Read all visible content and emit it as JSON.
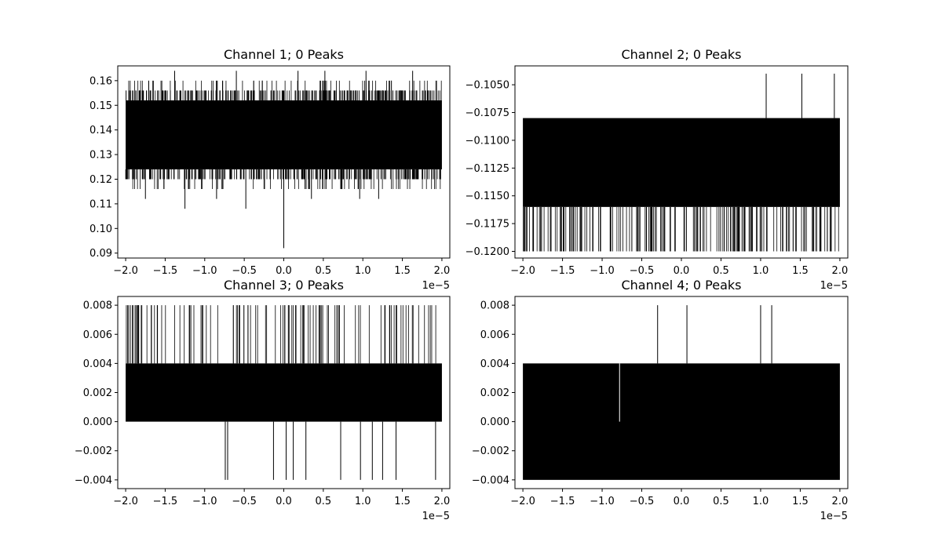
{
  "figure": {
    "background": "#ffffff",
    "line_color": "#000000"
  },
  "chart_data": [
    {
      "type": "line",
      "title": "Channel 1; 0 Peaks",
      "xlabel": "",
      "ylabel": "",
      "xlim": [
        -2.1,
        2.1
      ],
      "ylim": [
        0.088,
        0.166
      ],
      "x_offset_label": "1e−5",
      "xticks": [
        -2.0,
        -1.5,
        -1.0,
        -0.5,
        0.0,
        0.5,
        1.0,
        1.5,
        2.0
      ],
      "xtick_labels": [
        "−2.0",
        "−1.5",
        "−1.0",
        "−0.5",
        "0.0",
        "0.5",
        "1.0",
        "1.5",
        "2.0"
      ],
      "yticks": [
        0.09,
        0.1,
        0.11,
        0.12,
        0.13,
        0.14,
        0.15,
        0.16
      ],
      "ytick_labels": [
        "0.09",
        "0.10",
        "0.11",
        "0.12",
        "0.13",
        "0.14",
        "0.15",
        "0.16"
      ],
      "x_range": [
        -2.0,
        2.0
      ],
      "band": [
        0.124,
        0.152
      ],
      "occasional_levels": [
        0.12,
        0.156
      ],
      "rare_levels": [
        0.116,
        0.16
      ],
      "spikes": [
        {
          "x": 0.0,
          "y": 0.092
        },
        {
          "x": -1.25,
          "y": 0.108
        },
        {
          "x": -0.48,
          "y": 0.108
        },
        {
          "x": 0.52,
          "y": 0.164
        },
        {
          "x": 0.18,
          "y": 0.164
        },
        {
          "x": -1.38,
          "y": 0.164
        },
        {
          "x": -0.6,
          "y": 0.164
        },
        {
          "x": 1.04,
          "y": 0.164
        },
        {
          "x": 1.63,
          "y": 0.164
        },
        {
          "x": 0.96,
          "y": 0.112
        },
        {
          "x": -1.75,
          "y": 0.112
        },
        {
          "x": 1.2,
          "y": 0.112
        },
        {
          "x": -0.85,
          "y": 0.112
        },
        {
          "x": 0.35,
          "y": 0.112
        }
      ],
      "grid": false,
      "legend": "none"
    },
    {
      "type": "line",
      "title": "Channel 2; 0 Peaks",
      "xlabel": "",
      "ylabel": "",
      "xlim": [
        -2.1,
        2.1
      ],
      "ylim": [
        -0.1206,
        -0.1033
      ],
      "x_offset_label": "1e−5",
      "xticks": [
        -2.0,
        -1.5,
        -1.0,
        -0.5,
        0.0,
        0.5,
        1.0,
        1.5,
        2.0
      ],
      "xtick_labels": [
        "−2.0",
        "−1.5",
        "−1.0",
        "−0.5",
        "0.0",
        "0.5",
        "1.0",
        "1.5",
        "2.0"
      ],
      "yticks": [
        -0.105,
        -0.1075,
        -0.11,
        -0.1125,
        -0.115,
        -0.1175,
        -0.12
      ],
      "ytick_labels": [
        "−0.1050",
        "−0.1075",
        "−0.1100",
        "−0.1125",
        "−0.1150",
        "−0.1175",
        "−0.1200"
      ],
      "x_range": [
        -2.0,
        2.0
      ],
      "band": [
        -0.116,
        -0.108
      ],
      "occasional_levels": [
        -0.12
      ],
      "rare_levels": [],
      "spikes": [
        {
          "x": 1.07,
          "y": -0.104
        },
        {
          "x": 1.52,
          "y": -0.104
        },
        {
          "x": 1.93,
          "y": -0.104
        }
      ],
      "grid": false,
      "legend": "none"
    },
    {
      "type": "line",
      "title": "Channel 3; 0 Peaks",
      "xlabel": "",
      "ylabel": "",
      "xlim": [
        -2.1,
        2.1
      ],
      "ylim": [
        -0.0046,
        0.0086
      ],
      "x_offset_label": "1e−5",
      "xticks": [
        -2.0,
        -1.5,
        -1.0,
        -0.5,
        0.0,
        0.5,
        1.0,
        1.5,
        2.0
      ],
      "xtick_labels": [
        "−2.0",
        "−1.5",
        "−1.0",
        "−0.5",
        "0.0",
        "0.5",
        "1.0",
        "1.5",
        "2.0"
      ],
      "yticks": [
        -0.004,
        -0.002,
        0.0,
        0.002,
        0.004,
        0.006,
        0.008
      ],
      "ytick_labels": [
        "−0.004",
        "−0.002",
        "0.000",
        "0.002",
        "0.004",
        "0.006",
        "0.008"
      ],
      "x_range": [
        -2.0,
        2.0
      ],
      "band": [
        0.0,
        0.004
      ],
      "occasional_levels": [
        0.008
      ],
      "rare_levels": [],
      "spikes": [
        {
          "x": -0.74,
          "y": -0.004
        },
        {
          "x": -0.71,
          "y": -0.004
        },
        {
          "x": -0.13,
          "y": -0.004
        },
        {
          "x": 0.03,
          "y": -0.004
        },
        {
          "x": 0.12,
          "y": -0.004
        },
        {
          "x": 0.28,
          "y": -0.004
        },
        {
          "x": 0.72,
          "y": -0.004
        },
        {
          "x": 0.97,
          "y": -0.004
        },
        {
          "x": 1.12,
          "y": -0.004
        },
        {
          "x": 1.25,
          "y": -0.004
        },
        {
          "x": 1.42,
          "y": -0.004
        },
        {
          "x": 1.92,
          "y": -0.004
        }
      ],
      "grid": false,
      "legend": "none"
    },
    {
      "type": "line",
      "title": "Channel 4; 0 Peaks",
      "xlabel": "",
      "ylabel": "",
      "xlim": [
        -2.1,
        2.1
      ],
      "ylim": [
        -0.0046,
        0.0086
      ],
      "x_offset_label": "1e−5",
      "xticks": [
        -2.0,
        -1.5,
        -1.0,
        -0.5,
        0.0,
        0.5,
        1.0,
        1.5,
        2.0
      ],
      "xtick_labels": [
        "−2.0",
        "−1.5",
        "−1.0",
        "−0.5",
        "0.0",
        "0.5",
        "1.0",
        "1.5",
        "2.0"
      ],
      "yticks": [
        -0.004,
        -0.002,
        0.0,
        0.002,
        0.004,
        0.006,
        0.008
      ],
      "ytick_labels": [
        "−0.004",
        "−0.002",
        "0.000",
        "0.002",
        "0.004",
        "0.006",
        "0.008"
      ],
      "x_range": [
        -2.0,
        2.0
      ],
      "band": [
        -0.004,
        0.004
      ],
      "occasional_levels": [],
      "rare_levels": [],
      "spikes": [
        {
          "x": -0.3,
          "y": 0.008
        },
        {
          "x": 0.07,
          "y": 0.008
        },
        {
          "x": 1.0,
          "y": 0.008
        },
        {
          "x": 1.14,
          "y": 0.008
        }
      ],
      "gaps": [
        {
          "x": -0.78,
          "y": 0.0
        }
      ],
      "grid": false,
      "legend": "none"
    }
  ]
}
